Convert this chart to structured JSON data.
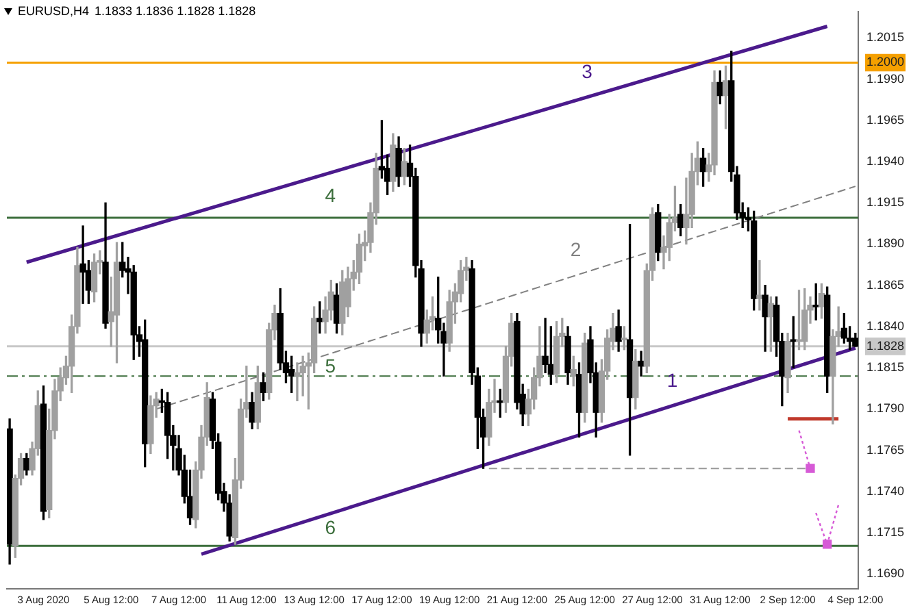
{
  "chart_data": {
    "type": "candlestick",
    "title": "EURUSD,H4",
    "subtitle": "1.1833 1.1836 1.1828 1.1828",
    "categories": [
      null,
      null,
      null,
      null,
      null,
      null,
      "3 Aug 2020",
      null,
      null,
      null,
      null,
      null,
      null,
      null,
      null,
      null,
      null,
      null,
      "5 Aug 12:00",
      null,
      null,
      null,
      null,
      null,
      null,
      null,
      null,
      null,
      null,
      null,
      "7 Aug 12:00",
      null,
      null,
      null,
      null,
      null,
      null,
      null,
      null,
      null,
      null,
      null,
      "11 Aug 12:00",
      null,
      null,
      null,
      null,
      null,
      null,
      null,
      null,
      null,
      null,
      null,
      "13 Aug 12:00",
      null,
      null,
      null,
      null,
      null,
      null,
      null,
      null,
      null,
      null,
      null,
      "17 Aug 12:00",
      null,
      null,
      null,
      null,
      null,
      null,
      null,
      null,
      null,
      null,
      null,
      "19 Aug 12:00",
      null,
      null,
      null,
      null,
      null,
      null,
      null,
      null,
      null,
      null,
      null,
      "21 Aug 12:00",
      null,
      null,
      null,
      null,
      null,
      null,
      null,
      null,
      null,
      null,
      null,
      "25 Aug 12:00",
      null,
      null,
      null,
      null,
      null,
      null,
      null,
      null,
      null,
      null,
      null,
      "27 Aug 12:00",
      null,
      null,
      null,
      null,
      null,
      null,
      null,
      null,
      null,
      null,
      null,
      "31 Aug 12:00",
      null,
      null,
      null,
      null,
      null,
      null,
      null,
      null,
      null,
      null,
      null,
      "2 Sep 12:00",
      null,
      null,
      null,
      null,
      null,
      null,
      null,
      null,
      null,
      null,
      null,
      "4 Sep 12:00"
    ],
    "colors": [
      "#000000",
      "#a0a0a0",
      "#a0a0a0",
      "#000000",
      "#a0a0a0",
      "#a0a0a0",
      "#000000",
      "#a0a0a0",
      "#a0a0a0",
      "#a0a0a0",
      "#a0a0a0",
      "#a0a0a0",
      "#a0a0a0",
      "#000000",
      "#000000",
      "#a0a0a0",
      "#a0a0a0",
      "#000000",
      "#a0a0a0",
      "#a0a0a0",
      "#000000",
      "#000000",
      "#000000",
      "#000000",
      "#000000",
      "#a0a0a0",
      "#a0a0a0",
      "#000000",
      "#000000",
      "#000000",
      "#000000",
      "#000000",
      "#000000",
      "#a0a0a0",
      "#a0a0a0",
      "#a0a0a0",
      "#000000",
      "#000000",
      "#000000",
      "#000000",
      "#a0a0a0",
      "#a0a0a0",
      "#a0a0a0",
      "#000000",
      "#a0a0a0",
      "#000000",
      "#a0a0a0",
      "#a0a0a0",
      "#000000",
      "#000000",
      "#000000",
      "#a0a0a0",
      "#a0a0a0",
      "#a0a0a0",
      "#a0a0a0",
      "#000000",
      "#a0a0a0",
      "#a0a0a0",
      "#000000",
      "#a0a0a0",
      "#a0a0a0",
      "#a0a0a0",
      "#a0a0a0",
      "#a0a0a0",
      "#a0a0a0",
      "#a0a0a0",
      "#000000",
      "#000000",
      "#a0a0a0",
      "#000000",
      "#a0a0a0",
      "#000000",
      "#000000",
      "#000000",
      "#a0a0a0",
      "#a0a0a0",
      "#000000",
      "#000000",
      "#a0a0a0",
      "#a0a0a0",
      "#a0a0a0",
      "#a0a0a0",
      "#000000",
      "#000000",
      "#000000",
      "#a0a0a0",
      "#a0a0a0",
      "#000000",
      "#a0a0a0",
      "#a0a0a0",
      "#000000",
      "#000000",
      "#a0a0a0",
      "#a0a0a0",
      "#a0a0a0",
      "#000000",
      "#000000",
      "#a0a0a0",
      "#a0a0a0",
      "#000000",
      "#a0a0a0",
      "#000000",
      "#a0a0a0",
      "#000000",
      "#000000",
      "#a0a0a0",
      "#a0a0a0",
      "#a0a0a0",
      "#000000",
      "#a0a0a0",
      "#000000",
      "#a0a0a0",
      "#000000",
      "#a0a0a0",
      "#a0a0a0",
      "#000000",
      "#a0a0a0",
      "#a0a0a0",
      "#a0a0a0",
      "#000000",
      "#a0a0a0",
      "#a0a0a0",
      "#a0a0a0",
      "#000000",
      "#a0a0a0",
      "#a0a0a0",
      "#000000",
      "#a0a0a0",
      "#000000",
      "#000000",
      "#000000",
      "#000000",
      "#000000",
      "#a0a0a0",
      "#000000",
      "#a0a0a0",
      "#000000",
      "#000000",
      "#a0a0a0",
      "#000000",
      "#a0a0a0",
      "#a0a0a0",
      "#a0a0a0",
      "#000000",
      "#a0a0a0",
      "#000000",
      "#a0a0a0",
      "#a0a0a0",
      "#000000",
      "#000000",
      "#000000"
    ],
    "ohlc": [
      [
        1.1778,
        1.1784,
        1.1696,
        1.1708
      ],
      [
        1.1707,
        1.175,
        1.17,
        1.1748
      ],
      [
        1.1748,
        1.1763,
        1.1744,
        1.176
      ],
      [
        1.176,
        1.1763,
        1.175,
        1.1753
      ],
      [
        1.1753,
        1.177,
        1.175,
        1.1766
      ],
      [
        1.1766,
        1.1801,
        1.1762,
        1.1792
      ],
      [
        1.1793,
        1.1804,
        1.1723,
        1.1728
      ],
      [
        1.1729,
        1.179,
        1.1724,
        1.1777
      ],
      [
        1.1777,
        1.1808,
        1.1772,
        1.1801
      ],
      [
        1.1801,
        1.1815,
        1.1795,
        1.1809
      ],
      [
        1.1809,
        1.1822,
        1.1805,
        1.1816
      ],
      [
        1.1816,
        1.1847,
        1.18,
        1.184
      ],
      [
        1.184,
        1.1888,
        1.1836,
        1.1877
      ],
      [
        1.1878,
        1.1901,
        1.1854,
        1.1873
      ],
      [
        1.1874,
        1.188,
        1.1854,
        1.1862
      ],
      [
        1.1861,
        1.1884,
        1.1855,
        1.1879
      ],
      [
        1.1879,
        1.1886,
        1.1872,
        1.188
      ],
      [
        1.1879,
        1.1915,
        1.1839,
        1.1842
      ],
      [
        1.1843,
        1.187,
        1.1828,
        1.1849
      ],
      [
        1.1847,
        1.1891,
        1.1818,
        1.1879
      ],
      [
        1.1879,
        1.1891,
        1.187,
        1.1874
      ],
      [
        1.1875,
        1.1882,
        1.186,
        1.1873
      ],
      [
        1.1873,
        1.1877,
        1.182,
        1.1835
      ],
      [
        1.1835,
        1.184,
        1.1822,
        1.1831
      ],
      [
        1.1832,
        1.1844,
        1.1755,
        1.1769
      ],
      [
        1.1769,
        1.1798,
        1.1763,
        1.1792
      ],
      [
        1.1792,
        1.18,
        1.1785,
        1.1796
      ],
      [
        1.1795,
        1.1802,
        1.1788,
        1.1794
      ],
      [
        1.1794,
        1.18,
        1.176,
        1.1774
      ],
      [
        1.1774,
        1.178,
        1.1753,
        1.1768
      ],
      [
        1.1766,
        1.1774,
        1.175,
        1.1753
      ],
      [
        1.1753,
        1.1762,
        1.1733,
        1.1737
      ],
      [
        1.1737,
        1.1753,
        1.172,
        1.1724
      ],
      [
        1.1723,
        1.1758,
        1.1718,
        1.1753
      ],
      [
        1.1753,
        1.178,
        1.1748,
        1.1773
      ],
      [
        1.1773,
        1.1806,
        1.1768,
        1.1797
      ],
      [
        1.1796,
        1.18,
        1.1766,
        1.1771
      ],
      [
        1.177,
        1.1775,
        1.1735,
        1.1739
      ],
      [
        1.174,
        1.1745,
        1.1728,
        1.1733
      ],
      [
        1.1733,
        1.1738,
        1.171,
        1.1713
      ],
      [
        1.1712,
        1.176,
        1.1708,
        1.1747
      ],
      [
        1.1747,
        1.1796,
        1.1742,
        1.179
      ],
      [
        1.179,
        1.1816,
        1.1785,
        1.1794
      ],
      [
        1.1794,
        1.18,
        1.1778,
        1.1782
      ],
      [
        1.1782,
        1.1816,
        1.1778,
        1.1806
      ],
      [
        1.1806,
        1.1812,
        1.1795,
        1.18
      ],
      [
        1.18,
        1.1842,
        1.1796,
        1.1838
      ],
      [
        1.1838,
        1.1853,
        1.1832,
        1.1848
      ],
      [
        1.1848,
        1.1863,
        1.1814,
        1.1818
      ],
      [
        1.1818,
        1.1825,
        1.1806,
        1.1812
      ],
      [
        1.1814,
        1.1822,
        1.18,
        1.181
      ],
      [
        1.181,
        1.1818,
        1.1795,
        1.1812
      ],
      [
        1.1812,
        1.1822,
        1.1798,
        1.1816
      ],
      [
        1.1816,
        1.1824,
        1.179,
        1.1818
      ],
      [
        1.1818,
        1.1852,
        1.1812,
        1.1845
      ],
      [
        1.1845,
        1.1855,
        1.1836,
        1.1843
      ],
      [
        1.1843,
        1.1858,
        1.1836,
        1.185
      ],
      [
        1.185,
        1.1868,
        1.1844,
        1.1861
      ],
      [
        1.1859,
        1.1866,
        1.1836,
        1.1842
      ],
      [
        1.1842,
        1.1874,
        1.1835,
        1.1867
      ],
      [
        1.1852,
        1.1876,
        1.1846,
        1.1869
      ],
      [
        1.1869,
        1.188,
        1.1862,
        1.1873
      ],
      [
        1.1873,
        1.1896,
        1.1866,
        1.189
      ],
      [
        1.1889,
        1.1898,
        1.188,
        1.1891
      ],
      [
        1.1891,
        1.1915,
        1.1885,
        1.1909
      ],
      [
        1.1909,
        1.1945,
        1.1902,
        1.1936
      ],
      [
        1.1937,
        1.1965,
        1.193,
        1.1935
      ],
      [
        1.1936,
        1.1944,
        1.192,
        1.1928
      ],
      [
        1.1928,
        1.1957,
        1.1922,
        1.195
      ],
      [
        1.1948,
        1.1955,
        1.1925,
        1.1931
      ],
      [
        1.1931,
        1.1948,
        1.1926,
        1.194
      ],
      [
        1.1939,
        1.195,
        1.1925,
        1.1931
      ],
      [
        1.1931,
        1.1936,
        1.187,
        1.1877
      ],
      [
        1.1875,
        1.188,
        1.1828,
        1.1836
      ],
      [
        1.1836,
        1.185,
        1.183,
        1.1844
      ],
      [
        1.1844,
        1.1858,
        1.1838,
        1.1846
      ],
      [
        1.1845,
        1.187,
        1.183,
        1.1838
      ],
      [
        1.1837,
        1.1842,
        1.181,
        1.183
      ],
      [
        1.183,
        1.1862,
        1.1825,
        1.1855
      ],
      [
        1.1855,
        1.1866,
        1.1842,
        1.1861
      ],
      [
        1.186,
        1.188,
        1.1855,
        1.1874
      ],
      [
        1.1874,
        1.1882,
        1.1868,
        1.1876
      ],
      [
        1.1875,
        1.188,
        1.1805,
        1.1812
      ],
      [
        1.181,
        1.1815,
        1.1766,
        1.1785
      ],
      [
        1.1785,
        1.179,
        1.1754,
        1.1773
      ],
      [
        1.1773,
        1.1802,
        1.1768,
        1.1794
      ],
      [
        1.1794,
        1.1808,
        1.1788,
        1.1795
      ],
      [
        1.1795,
        1.1802,
        1.1785,
        1.1794
      ],
      [
        1.1794,
        1.1828,
        1.1788,
        1.1822
      ],
      [
        1.1822,
        1.1848,
        1.1816,
        1.1842
      ],
      [
        1.1843,
        1.1848,
        1.179,
        1.1794
      ],
      [
        1.1799,
        1.1805,
        1.178,
        1.1787
      ],
      [
        1.1787,
        1.1802,
        1.178,
        1.1796
      ],
      [
        1.1796,
        1.1815,
        1.179,
        1.1809
      ],
      [
        1.1809,
        1.184,
        1.1804,
        1.1822
      ],
      [
        1.1822,
        1.1845,
        1.1812,
        1.1817
      ],
      [
        1.1817,
        1.184,
        1.1805,
        1.1811
      ],
      [
        1.1811,
        1.1843,
        1.1806,
        1.1834
      ],
      [
        1.1834,
        1.1845,
        1.1828,
        1.1836
      ],
      [
        1.1834,
        1.184,
        1.1805,
        1.1812
      ],
      [
        1.181,
        1.1822,
        1.1804,
        1.1814
      ],
      [
        1.1811,
        1.1818,
        1.1773,
        1.1788
      ],
      [
        1.1788,
        1.1836,
        1.1782,
        1.183
      ],
      [
        1.1832,
        1.184,
        1.1806,
        1.1812
      ],
      [
        1.1812,
        1.1818,
        1.1773,
        1.1788
      ],
      [
        1.1788,
        1.182,
        1.1782,
        1.1813
      ],
      [
        1.1813,
        1.1838,
        1.1808,
        1.1833
      ],
      [
        1.1831,
        1.1848,
        1.1826,
        1.1839
      ],
      [
        1.184,
        1.185,
        1.1825,
        1.1831
      ],
      [
        1.1832,
        1.184,
        1.1826,
        1.1833
      ],
      [
        1.1832,
        1.1902,
        1.1762,
        1.1797
      ],
      [
        1.1797,
        1.1826,
        1.179,
        1.1819
      ],
      [
        1.1819,
        1.1825,
        1.181,
        1.1816
      ],
      [
        1.1816,
        1.1878,
        1.1812,
        1.1874
      ],
      [
        1.1874,
        1.1912,
        1.1868,
        1.1908
      ],
      [
        1.1909,
        1.1914,
        1.188,
        1.1885
      ],
      [
        1.1885,
        1.1895,
        1.1875,
        1.1888
      ],
      [
        1.1888,
        1.1908,
        1.188,
        1.1903
      ],
      [
        1.1903,
        1.1925,
        1.1898,
        1.1906
      ],
      [
        1.1908,
        1.1914,
        1.1895,
        1.19
      ],
      [
        1.19,
        1.193,
        1.189,
        1.1908
      ],
      [
        1.1908,
        1.1945,
        1.19,
        1.1934
      ],
      [
        1.1934,
        1.1952,
        1.1926,
        1.1942
      ],
      [
        1.1942,
        1.1948,
        1.1925,
        1.1934
      ],
      [
        1.1934,
        1.1945,
        1.1928,
        1.1938
      ],
      [
        1.1938,
        1.1995,
        1.1932,
        1.1988
      ],
      [
        1.1988,
        1.1995,
        1.1975,
        1.198
      ],
      [
        1.198,
        1.1998,
        1.196,
        1.1989
      ],
      [
        1.1989,
        1.2007,
        1.1928,
        1.1934
      ],
      [
        1.1932,
        1.1937,
        1.1905,
        1.1909
      ],
      [
        1.1909,
        1.1915,
        1.19,
        1.1906
      ],
      [
        1.1906,
        1.1912,
        1.1898,
        1.1905
      ],
      [
        1.1904,
        1.191,
        1.185,
        1.1857
      ],
      [
        1.1857,
        1.188,
        1.185,
        1.1859
      ],
      [
        1.1859,
        1.1865,
        1.1825,
        1.1846
      ],
      [
        1.1846,
        1.1858,
        1.1825,
        1.1854
      ],
      [
        1.1853,
        1.1858,
        1.1822,
        1.1831
      ],
      [
        1.1831,
        1.1836,
        1.1792,
        1.181
      ],
      [
        1.1809,
        1.1836,
        1.18,
        1.1831
      ],
      [
        1.1832,
        1.1846,
        1.1815,
        1.1831
      ],
      [
        1.1831,
        1.1862,
        1.1826,
        1.1832
      ],
      [
        1.1831,
        1.1863,
        1.1826,
        1.185
      ],
      [
        1.185,
        1.1858,
        1.1842,
        1.1853
      ],
      [
        1.1853,
        1.1866,
        1.1844,
        1.1852
      ],
      [
        1.1852,
        1.1866,
        1.1845,
        1.186
      ],
      [
        1.1859,
        1.1864,
        1.18,
        1.181
      ],
      [
        1.181,
        1.1838,
        1.1781,
        1.1834
      ],
      [
        1.1834,
        1.1852,
        1.1828,
        1.1837
      ],
      [
        1.1839,
        1.1848,
        1.183,
        1.1833
      ],
      [
        1.1833,
        1.184,
        1.1826,
        1.1831
      ],
      [
        1.1833,
        1.1836,
        1.1828,
        1.1828
      ]
    ],
    "series": [
      {
        "type": "line",
        "name": "3",
        "color": "#4b1a8c",
        "line_style": "solid",
        "marker": "none",
        "values": [
          null,
          null,
          null,
          1.1879,
          null,
          null,
          null,
          null,
          null,
          null,
          null,
          null,
          null,
          null,
          null,
          null,
          null,
          null,
          null,
          null,
          null,
          null,
          null,
          null,
          null,
          null,
          null,
          null,
          null,
          null,
          null,
          null,
          null,
          null,
          null,
          null,
          null,
          null,
          null,
          null,
          null,
          null,
          null,
          null,
          null,
          null,
          null,
          null,
          null,
          null,
          null,
          null,
          null,
          null,
          null,
          null,
          null,
          null,
          null,
          null,
          null,
          null,
          null,
          null,
          null,
          null,
          null,
          null,
          null,
          null,
          null,
          null,
          null,
          null,
          null,
          null,
          null,
          null,
          null,
          null,
          null,
          null,
          null,
          null,
          null,
          null,
          null,
          null,
          null,
          null,
          null,
          null,
          null,
          null,
          null,
          null,
          null,
          null,
          null,
          null,
          null,
          null,
          null,
          null,
          null,
          null,
          null,
          null,
          null,
          null,
          null,
          null,
          null,
          null,
          null,
          null,
          null,
          null,
          null,
          null,
          null,
          null,
          null,
          null,
          null,
          null,
          null,
          null,
          null,
          null,
          null,
          null,
          null,
          null,
          null,
          null,
          null,
          null,
          null,
          null,
          null,
          null,
          null,
          null,
          null,
          1.2022,
          null,
          null,
          null,
          null,
          null
        ]
      },
      {
        "type": "line",
        "name": "1",
        "color": "#4b1a8c",
        "line_style": "solid",
        "marker": "none",
        "values": [
          null,
          null,
          null,
          null,
          null,
          null,
          null,
          null,
          null,
          null,
          null,
          null,
          null,
          null,
          null,
          null,
          null,
          null,
          null,
          null,
          null,
          null,
          null,
          null,
          null,
          null,
          null,
          null,
          null,
          null,
          null,
          null,
          null,
          null,
          1.1702,
          null,
          null,
          null,
          null,
          null,
          null,
          null,
          null,
          null,
          null,
          null,
          null,
          null,
          null,
          null,
          null,
          null,
          null,
          null,
          null,
          null,
          null,
          null,
          null,
          null,
          null,
          null,
          null,
          null,
          null,
          null,
          null,
          null,
          null,
          null,
          null,
          null,
          null,
          null,
          null,
          null,
          null,
          null,
          null,
          null,
          null,
          null,
          null,
          null,
          null,
          null,
          null,
          null,
          null,
          null,
          null,
          null,
          null,
          null,
          null,
          null,
          null,
          null,
          null,
          null,
          null,
          null,
          null,
          null,
          null,
          null,
          null,
          null,
          null,
          null,
          null,
          null,
          null,
          null,
          null,
          null,
          null,
          null,
          null,
          null,
          null,
          null,
          null,
          null,
          null,
          null,
          null,
          null,
          null,
          null,
          null,
          null,
          null,
          null,
          null,
          null,
          null,
          null,
          null,
          null,
          null,
          null,
          null,
          null,
          null,
          null,
          null,
          null,
          null,
          null,
          1.1827
        ]
      },
      {
        "type": "line",
        "name": "2",
        "color": "#808080",
        "line_style": "dashed",
        "marker": "none",
        "values": [
          null,
          null,
          null,
          null,
          null,
          null,
          null,
          null,
          null,
          null,
          null,
          null,
          null,
          null,
          null,
          null,
          null,
          null,
          null,
          null,
          null,
          null,
          null,
          null,
          null,
          null,
          1.179,
          null,
          null,
          null,
          null,
          null,
          null,
          null,
          null,
          null,
          null,
          null,
          null,
          null,
          null,
          null,
          null,
          null,
          null,
          null,
          null,
          null,
          null,
          null,
          null,
          null,
          null,
          null,
          null,
          null,
          null,
          null,
          null,
          null,
          null,
          null,
          null,
          null,
          null,
          null,
          null,
          null,
          null,
          null,
          null,
          null,
          null,
          null,
          null,
          null,
          null,
          null,
          null,
          null,
          null,
          null,
          null,
          null,
          null,
          null,
          null,
          null,
          null,
          null,
          null,
          null,
          null,
          null,
          null,
          null,
          null,
          null,
          null,
          null,
          null,
          null,
          null,
          null,
          null,
          null,
          null,
          null,
          null,
          null,
          null,
          null,
          null,
          null,
          null,
          null,
          null,
          null,
          null,
          null,
          null,
          null,
          null,
          null,
          null,
          null,
          null,
          null,
          null,
          null,
          null,
          null,
          null,
          null,
          null,
          null,
          null,
          null,
          null,
          null,
          null,
          null,
          null,
          null,
          null,
          null,
          null,
          null,
          null,
          null,
          1.1925
        ]
      },
      {
        "type": "line",
        "color": "#999999",
        "line_style": "dashed",
        "marker": "none",
        "values": [
          null,
          null,
          null,
          null,
          null,
          null,
          null,
          null,
          null,
          null,
          null,
          null,
          null,
          null,
          null,
          null,
          null,
          null,
          null,
          null,
          null,
          null,
          null,
          null,
          null,
          null,
          null,
          null,
          null,
          null,
          null,
          null,
          null,
          null,
          null,
          null,
          null,
          null,
          null,
          null,
          null,
          null,
          null,
          null,
          null,
          null,
          null,
          null,
          null,
          null,
          null,
          null,
          null,
          null,
          null,
          null,
          null,
          null,
          null,
          null,
          null,
          null,
          null,
          null,
          null,
          null,
          null,
          null,
          null,
          null,
          null,
          null,
          null,
          null,
          null,
          null,
          null,
          null,
          null,
          null,
          null,
          null,
          null,
          null,
          null,
          1.1754,
          null,
          null,
          null,
          null,
          null,
          null,
          null,
          null,
          null,
          null,
          null,
          null,
          null,
          null,
          null,
          null,
          null,
          null,
          null,
          null,
          null,
          null,
          null,
          null,
          null,
          null,
          null,
          null,
          null,
          null,
          null,
          null,
          null,
          null,
          null,
          null,
          null,
          null,
          null,
          null,
          null,
          null,
          null,
          null,
          null,
          null,
          null,
          null,
          null,
          null,
          null,
          null,
          null,
          null,
          null,
          null,
          1.1754,
          null,
          null,
          null,
          null,
          null,
          null,
          null,
          null
        ]
      },
      {
        "type": "line",
        "color": "#c0392b",
        "line_style": "solid",
        "marker": "none",
        "values": [
          null,
          null,
          null,
          null,
          null,
          null,
          null,
          null,
          null,
          null,
          null,
          null,
          null,
          null,
          null,
          null,
          null,
          null,
          null,
          null,
          null,
          null,
          null,
          null,
          null,
          null,
          null,
          null,
          null,
          null,
          null,
          null,
          null,
          null,
          null,
          null,
          null,
          null,
          null,
          null,
          null,
          null,
          null,
          null,
          null,
          null,
          null,
          null,
          null,
          null,
          null,
          null,
          null,
          null,
          null,
          null,
          null,
          null,
          null,
          null,
          null,
          null,
          null,
          null,
          null,
          null,
          null,
          null,
          null,
          null,
          null,
          null,
          null,
          null,
          null,
          null,
          null,
          null,
          null,
          null,
          null,
          null,
          null,
          null,
          null,
          null,
          null,
          null,
          null,
          null,
          null,
          null,
          null,
          null,
          null,
          null,
          null,
          null,
          null,
          null,
          null,
          null,
          null,
          null,
          null,
          null,
          null,
          null,
          null,
          null,
          null,
          null,
          null,
          null,
          null,
          null,
          null,
          null,
          null,
          null,
          null,
          null,
          null,
          null,
          null,
          null,
          null,
          null,
          null,
          null,
          null,
          null,
          null,
          null,
          null,
          null,
          null,
          null,
          1.1784,
          null,
          null,
          null,
          null,
          null,
          null,
          null,
          null,
          1.1784,
          null,
          null,
          null
        ]
      },
      {
        "type": "line",
        "color": "#d65ad6",
        "line_style": "dotted",
        "marker": "none",
        "values": [
          null,
          null,
          null,
          null,
          null,
          null,
          null,
          null,
          null,
          null,
          null,
          null,
          null,
          null,
          null,
          null,
          null,
          null,
          null,
          null,
          null,
          null,
          null,
          null,
          null,
          null,
          null,
          null,
          null,
          null,
          null,
          null,
          null,
          null,
          null,
          null,
          null,
          null,
          null,
          null,
          null,
          null,
          null,
          null,
          null,
          null,
          null,
          null,
          null,
          null,
          null,
          null,
          null,
          null,
          null,
          null,
          null,
          null,
          null,
          null,
          null,
          null,
          null,
          null,
          null,
          null,
          null,
          null,
          null,
          null,
          null,
          null,
          null,
          null,
          null,
          null,
          null,
          null,
          null,
          null,
          null,
          null,
          null,
          null,
          null,
          null,
          null,
          null,
          null,
          null,
          null,
          null,
          null,
          null,
          null,
          null,
          null,
          null,
          null,
          null,
          null,
          null,
          null,
          null,
          null,
          null,
          null,
          null,
          null,
          null,
          null,
          null,
          null,
          null,
          null,
          null,
          null,
          null,
          null,
          null,
          null,
          null,
          null,
          null,
          null,
          null,
          null,
          null,
          null,
          null,
          null,
          null,
          null,
          null,
          null,
          null,
          null,
          null,
          null,
          null,
          1.1777,
          null,
          1.1754,
          null,
          null,
          null,
          null,
          null,
          null,
          null,
          null
        ]
      },
      {
        "type": "line",
        "color": "#d65ad6",
        "line_style": "dotted",
        "marker": "none",
        "values": [
          null,
          null,
          null,
          null,
          null,
          null,
          null,
          null,
          null,
          null,
          null,
          null,
          null,
          null,
          null,
          null,
          null,
          null,
          null,
          null,
          null,
          null,
          null,
          null,
          null,
          null,
          null,
          null,
          null,
          null,
          null,
          null,
          null,
          null,
          null,
          null,
          null,
          null,
          null,
          null,
          null,
          null,
          null,
          null,
          null,
          null,
          null,
          null,
          null,
          null,
          null,
          null,
          null,
          null,
          null,
          null,
          null,
          null,
          null,
          null,
          null,
          null,
          null,
          null,
          null,
          null,
          null,
          null,
          null,
          null,
          null,
          null,
          null,
          null,
          null,
          null,
          null,
          null,
          null,
          null,
          null,
          null,
          null,
          null,
          null,
          null,
          null,
          null,
          null,
          null,
          null,
          null,
          null,
          null,
          null,
          null,
          null,
          null,
          null,
          null,
          null,
          null,
          null,
          null,
          null,
          null,
          null,
          null,
          null,
          null,
          null,
          null,
          null,
          null,
          null,
          null,
          null,
          null,
          null,
          null,
          null,
          null,
          null,
          null,
          null,
          null,
          null,
          null,
          null,
          null,
          null,
          null,
          null,
          null,
          null,
          null,
          null,
          null,
          null,
          null,
          null,
          null,
          null,
          1.1727,
          null,
          1.1708,
          null,
          1.1732,
          null,
          null,
          null
        ]
      },
      {
        "type": "scatter",
        "color": "#d65ad6",
        "marker": "square",
        "values": [
          null,
          null,
          null,
          null,
          null,
          null,
          null,
          null,
          null,
          null,
          null,
          null,
          null,
          null,
          null,
          null,
          null,
          null,
          null,
          null,
          null,
          null,
          null,
          null,
          null,
          null,
          null,
          null,
          null,
          null,
          null,
          null,
          null,
          null,
          null,
          null,
          null,
          null,
          null,
          null,
          null,
          null,
          null,
          null,
          null,
          null,
          null,
          null,
          null,
          null,
          null,
          null,
          null,
          null,
          null,
          null,
          null,
          null,
          null,
          null,
          null,
          null,
          null,
          null,
          null,
          null,
          null,
          null,
          null,
          null,
          null,
          null,
          null,
          null,
          null,
          null,
          null,
          null,
          null,
          null,
          null,
          null,
          null,
          null,
          null,
          null,
          null,
          null,
          null,
          null,
          null,
          null,
          null,
          null,
          null,
          null,
          null,
          null,
          null,
          null,
          null,
          null,
          null,
          null,
          null,
          null,
          null,
          null,
          null,
          null,
          null,
          null,
          null,
          null,
          null,
          null,
          null,
          null,
          null,
          null,
          null,
          null,
          null,
          null,
          null,
          null,
          null,
          null,
          null,
          null,
          null,
          null,
          null,
          null,
          null,
          null,
          null,
          null,
          null,
          null,
          null,
          null,
          1.1754,
          null,
          null,
          1.1708,
          null,
          null,
          null,
          null,
          null
        ]
      }
    ],
    "ref_lines": [
      {
        "axis": "y",
        "value": 1.2,
        "color": "#f5a000",
        "line_style": "solid"
      },
      {
        "axis": "y",
        "value": 1.1906,
        "color": "#3c6e3c",
        "line_style": "solid"
      },
      {
        "axis": "y",
        "value": 1.1828,
        "color": "#c8c8c8",
        "line_style": "solid"
      },
      {
        "axis": "y",
        "value": 1.181,
        "color": "#3c6e3c",
        "line_style": "dashed"
      },
      {
        "axis": "y",
        "value": 1.1707,
        "color": "#3c6e3c",
        "line_style": "solid"
      }
    ],
    "annotations": [
      "4",
      "5",
      "6"
    ],
    "ylim": [
      1.1681,
      1.2031
    ],
    "yticks": [
      1.2015,
      {
        "value": 1.2,
        "label": "1.2000"
      },
      {
        "value": 1.199,
        "label": "1.1990"
      },
      1.1965,
      {
        "value": 1.194,
        "label": "1.1940"
      },
      1.1915,
      {
        "value": 1.189,
        "label": "1.1890"
      },
      1.1865,
      {
        "value": 1.184,
        "label": "1.1840"
      },
      {
        "value": 1.1828,
        "label": "1.1828"
      },
      1.1815,
      {
        "value": 1.179,
        "label": "1.1790"
      },
      1.1765,
      {
        "value": 1.174,
        "label": "1.1740"
      },
      1.1715,
      {
        "value": 1.169,
        "label": "1.1690"
      }
    ],
    "grid": false,
    "legend": false
  }
}
